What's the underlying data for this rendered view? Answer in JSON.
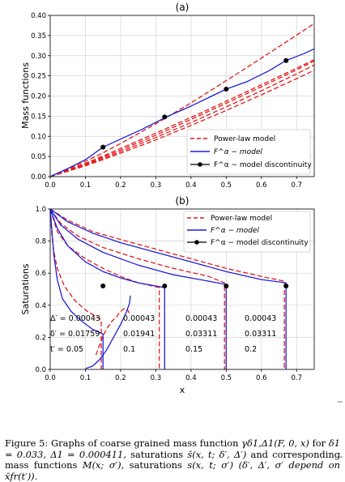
{
  "figure": {
    "caption": {
      "label": "Figure 5:",
      "text_1": "Graphs of coarse grained mass function",
      "math_gamma": "γδ1,Δ1(F, 0, x)",
      "text_2": "for",
      "math_params": "δ1 = 0.033, Δ1 = 0.000411,",
      "text_3": "saturations",
      "math_sbar": "s̄(x, t; δ′, Δ′)",
      "text_4": "and corresponding mass functions",
      "math_M": "M(x; σ′),",
      "text_5": "saturations",
      "math_s": "s(x, t; σ′)",
      "math_dep": "(δ′, Δ′, σ′ depend on x̄fr(t′))."
    }
  },
  "chart_data": [
    {
      "panel_label": "(a)",
      "type": "line",
      "xlabel": "",
      "ylabel": "Mass functions",
      "xlim": [
        0.0,
        0.75
      ],
      "ylim": [
        0.0,
        0.4
      ],
      "xticks": [
        "0.0",
        "0.1",
        "0.2",
        "0.3",
        "0.4",
        "0.5",
        "0.6",
        "0.7"
      ],
      "yticks": [
        "0.00",
        "0.05",
        "0.10",
        "0.15",
        "0.20",
        "0.25",
        "0.30",
        "0.35",
        "0.40"
      ],
      "grid": true,
      "legend_position": "lower-right",
      "legend": [
        {
          "label": "Power-law model",
          "style": "dashed-red"
        },
        {
          "label": "F^α − model",
          "style": "solid-blue"
        },
        {
          "label": "F^α − model discontinuity",
          "style": "black-dot"
        }
      ],
      "series": [
        {
          "kind": "power-law",
          "x": [
            0,
            0.05,
            0.1,
            0.15,
            0.2,
            0.3,
            0.4,
            0.5,
            0.6,
            0.7,
            0.75
          ],
          "y": [
            0,
            0.014,
            0.029,
            0.045,
            0.062,
            0.097,
            0.134,
            0.173,
            0.213,
            0.255,
            0.277
          ]
        },
        {
          "kind": "power-law",
          "x": [
            0,
            0.05,
            0.1,
            0.15,
            0.2,
            0.3,
            0.4,
            0.5,
            0.6,
            0.7,
            0.75
          ],
          "y": [
            0,
            0.018,
            0.038,
            0.059,
            0.082,
            0.131,
            0.183,
            0.238,
            0.294,
            0.351,
            0.38
          ]
        },
        {
          "kind": "power-law",
          "x": [
            0,
            0.05,
            0.1,
            0.15,
            0.2,
            0.3,
            0.4,
            0.5,
            0.6,
            0.7,
            0.75
          ],
          "y": [
            0,
            0.016,
            0.033,
            0.051,
            0.07,
            0.108,
            0.147,
            0.187,
            0.228,
            0.269,
            0.29
          ]
        },
        {
          "kind": "power-law",
          "x": [
            0,
            0.05,
            0.1,
            0.15,
            0.2,
            0.3,
            0.4,
            0.5,
            0.6,
            0.7,
            0.75
          ],
          "y": [
            0,
            0.013,
            0.027,
            0.042,
            0.058,
            0.091,
            0.127,
            0.164,
            0.203,
            0.243,
            0.264
          ]
        },
        {
          "kind": "power-law",
          "x": [
            0,
            0.05,
            0.1,
            0.15,
            0.2,
            0.3,
            0.4,
            0.5,
            0.6,
            0.7,
            0.75
          ],
          "y": [
            0,
            0.015,
            0.031,
            0.048,
            0.066,
            0.103,
            0.142,
            0.182,
            0.223,
            0.265,
            0.287
          ]
        },
        {
          "kind": "F-model",
          "x": [
            0,
            0.02,
            0.05,
            0.1,
            0.15,
            0.2,
            0.26,
            0.33,
            0.4,
            0.45,
            0.5,
            0.56,
            0.62,
            0.67,
            0.72,
            0.75
          ],
          "y": [
            0,
            0.008,
            0.02,
            0.042,
            0.073,
            0.093,
            0.117,
            0.148,
            0.175,
            0.196,
            0.217,
            0.236,
            0.262,
            0.288,
            0.305,
            0.317
          ]
        }
      ],
      "discontinuities": [
        {
          "x": 0.15,
          "y": 0.073
        },
        {
          "x": 0.325,
          "y": 0.148
        },
        {
          "x": 0.5,
          "y": 0.217
        },
        {
          "x": 0.67,
          "y": 0.288
        }
      ]
    },
    {
      "panel_label": "(b)",
      "type": "line",
      "xlabel": "x",
      "ylabel": "Saturations",
      "xlim": [
        0.0,
        0.75
      ],
      "ylim": [
        0.0,
        1.0
      ],
      "xticks": [
        "0.0",
        "0.1",
        "0.2",
        "0.3",
        "0.4",
        "0.5",
        "0.6",
        "0.7"
      ],
      "yticks": [
        "0.0",
        "0.2",
        "0.4",
        "0.6",
        "0.8",
        "1.0"
      ],
      "grid": true,
      "legend_position": "upper-right",
      "legend": [
        {
          "label": "Power-law model",
          "style": "dashed-red"
        },
        {
          "label": "F^α − model",
          "style": "solid-blue"
        },
        {
          "label": "F^α − model discontinuity",
          "style": "black-dot"
        }
      ],
      "series": [
        {
          "kind": "power-law",
          "x": [
            0,
            0.005,
            0.01,
            0.02,
            0.04,
            0.07,
            0.1,
            0.13,
            0.145,
            0.145
          ],
          "y": [
            1.0,
            0.83,
            0.74,
            0.63,
            0.52,
            0.43,
            0.37,
            0.33,
            0.31,
            0.0
          ]
        },
        {
          "kind": "power-law",
          "x": [
            0,
            0.02,
            0.05,
            0.1,
            0.15,
            0.2,
            0.25,
            0.31,
            0.31
          ],
          "y": [
            1.0,
            0.86,
            0.77,
            0.69,
            0.63,
            0.58,
            0.54,
            0.51,
            0.0
          ]
        },
        {
          "kind": "power-law",
          "x": [
            0,
            0.03,
            0.08,
            0.15,
            0.25,
            0.35,
            0.45,
            0.495,
            0.495
          ],
          "y": [
            1.0,
            0.91,
            0.83,
            0.76,
            0.69,
            0.63,
            0.58,
            0.54,
            0.0
          ]
        },
        {
          "kind": "power-law",
          "x": [
            0,
            0.05,
            0.12,
            0.2,
            0.3,
            0.4,
            0.5,
            0.6,
            0.665,
            0.665
          ],
          "y": [
            1.0,
            0.93,
            0.86,
            0.81,
            0.75,
            0.69,
            0.63,
            0.58,
            0.55,
            0.0
          ]
        },
        {
          "kind": "power-law-cap",
          "x": [
            0.13,
            0.135,
            0.14,
            0.145,
            0.15,
            0.155,
            0.16,
            0.165,
            0.17,
            0.175,
            0.18,
            0.185,
            0.19,
            0.195,
            0.2,
            0.205,
            0.21,
            0.215,
            0.22,
            0.225
          ],
          "y": [
            0.09,
            0.12,
            0.15,
            0.18,
            0.21,
            0.23,
            0.25,
            0.27,
            0.28,
            0.3,
            0.31,
            0.32,
            0.33,
            0.35,
            0.36,
            0.37,
            0.38,
            0.38,
            0.37,
            0.35
          ]
        },
        {
          "kind": "F-model",
          "x": [
            0,
            0.005,
            0.01,
            0.02,
            0.035,
            0.06,
            0.09,
            0.12,
            0.15,
            0.15
          ],
          "y": [
            1.0,
            0.86,
            0.72,
            0.56,
            0.44,
            0.36,
            0.3,
            0.25,
            0.22,
            0.0
          ]
        },
        {
          "kind": "F-model",
          "x": [
            0,
            0.02,
            0.05,
            0.1,
            0.15,
            0.2,
            0.25,
            0.3,
            0.325,
            0.325
          ],
          "y": [
            1.0,
            0.88,
            0.77,
            0.67,
            0.61,
            0.57,
            0.54,
            0.52,
            0.51,
            0.0
          ]
        },
        {
          "kind": "F-model",
          "x": [
            0,
            0.03,
            0.08,
            0.15,
            0.25,
            0.35,
            0.45,
            0.5,
            0.5
          ],
          "y": [
            1.0,
            0.9,
            0.81,
            0.73,
            0.65,
            0.59,
            0.55,
            0.53,
            0.0
          ]
        },
        {
          "kind": "F-model",
          "x": [
            0,
            0.05,
            0.12,
            0.2,
            0.3,
            0.4,
            0.5,
            0.6,
            0.67,
            0.67
          ],
          "y": [
            1.0,
            0.92,
            0.85,
            0.79,
            0.73,
            0.67,
            0.61,
            0.56,
            0.54,
            0.0
          ]
        },
        {
          "kind": "F-model-cap",
          "x": [
            0.1,
            0.12,
            0.14,
            0.16,
            0.18,
            0.2,
            0.215,
            0.225,
            0.228
          ],
          "y": [
            0.005,
            0.02,
            0.06,
            0.12,
            0.2,
            0.28,
            0.35,
            0.41,
            0.46
          ]
        }
      ],
      "discontinuities": [
        {
          "x": 0.15,
          "y": 0.52
        },
        {
          "x": 0.325,
          "y": 0.52
        },
        {
          "x": 0.5,
          "y": 0.52
        },
        {
          "x": 0.67,
          "y": 0.52
        }
      ],
      "annotations": {
        "row_labels": [
          "Δ′ = 0.00043",
          "δ′ = 0.01759",
          "t′ = 0.05"
        ],
        "columns": [
          {
            "delta_cap": "0.00043",
            "delta": "0.01941",
            "t": "0.1"
          },
          {
            "delta_cap": "0.00043",
            "delta": "0.03311",
            "t": "0.15"
          },
          {
            "delta_cap": "0.00043",
            "delta": "0.03311",
            "t": "0.2"
          }
        ]
      }
    }
  ]
}
